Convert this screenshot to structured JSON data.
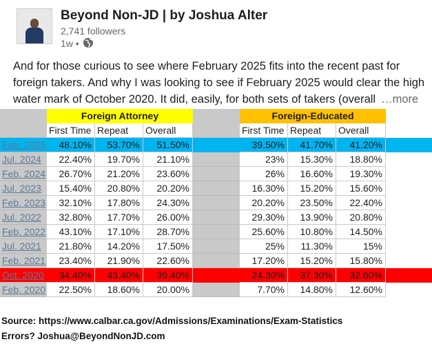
{
  "header": {
    "author": "Beyond Non-JD | by Joshua Alter",
    "followers": "2,741 followers",
    "time": "1w •"
  },
  "post": {
    "lines": [
      "And for those curious to see where February 2025 fits into the recent past for",
      "foreign takers. And why I was looking to see if February 2025 would clear the high",
      "water mark of October 2020. It did, easily, for both sets of takers (overall"
    ],
    "more": "…more"
  },
  "table": {
    "groups": [
      {
        "label": "Foreign Attorney",
        "color": "#ffff00"
      },
      {
        "label": "Foreign-Educated",
        "color": "#ffc000"
      }
    ],
    "subheaders": [
      "First Time",
      "Repeat",
      "Overall",
      "First Time",
      "Repeat",
      "Overall"
    ],
    "rows": [
      {
        "label": "Feb. 2025",
        "values": [
          "48.10%",
          "53.70%",
          "51.50%",
          "39.50%",
          "41.70%",
          "41.20%"
        ],
        "highlight": "#00b4f0"
      },
      {
        "label": "Jul. 2024",
        "values": [
          "22.40%",
          "19.70%",
          "21.10%",
          "23%",
          "15.30%",
          "18.80%"
        ]
      },
      {
        "label": "Feb. 2024",
        "values": [
          "26.70%",
          "21.20%",
          "23.60%",
          "26%",
          "16.60%",
          "19.30%"
        ]
      },
      {
        "label": "Jul. 2023",
        "values": [
          "15.40%",
          "20.80%",
          "20.20%",
          "16.30%",
          "15.20%",
          "15.60%"
        ]
      },
      {
        "label": "Feb. 2023",
        "values": [
          "32.10%",
          "17.80%",
          "24.30%",
          "20.20%",
          "23.50%",
          "22.40%"
        ]
      },
      {
        "label": "Jul. 2022",
        "values": [
          "32.80%",
          "17.70%",
          "26.00%",
          "29.30%",
          "13.90%",
          "20.80%"
        ]
      },
      {
        "label": "Feb. 2022",
        "values": [
          "43.10%",
          "17.10%",
          "28.70%",
          "25.60%",
          "10.80%",
          "14.50%"
        ]
      },
      {
        "label": "Jul. 2021",
        "values": [
          "21.80%",
          "14.20%",
          "17.50%",
          "25%",
          "11.30%",
          "15%"
        ]
      },
      {
        "label": "Feb. 2021",
        "values": [
          "23.40%",
          "21.90%",
          "22.60%",
          "17.20%",
          "15.20%",
          "15.80%"
        ]
      },
      {
        "label": "Oct. 2020",
        "values": [
          "34.40%",
          "43.40%",
          "39.40%",
          "24.30%",
          "37.30%",
          "32.60%"
        ],
        "highlight": "#ff0000"
      },
      {
        "label": "Feb. 2020",
        "values": [
          "22.50%",
          "18.60%",
          "20.00%",
          "7.70%",
          "14.80%",
          "12.60%"
        ]
      }
    ]
  },
  "footer": {
    "source": "Source: https://www.calbar.ca.gov/Admissions/Examinations/Exam-Statistics",
    "errors": "Errors? Joshua@BeyondNonJD.com"
  }
}
